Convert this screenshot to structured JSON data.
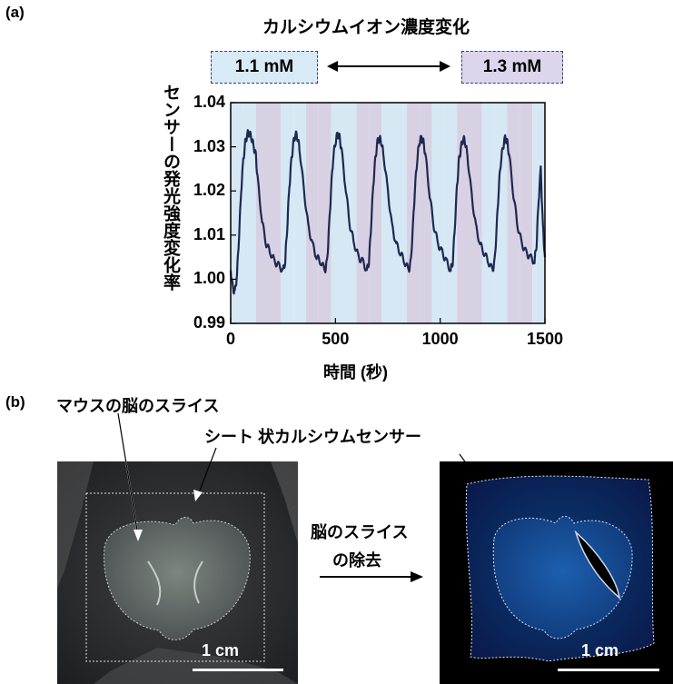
{
  "panel_a": {
    "label": "(a)",
    "title": "カルシウムイオン濃度変化",
    "low_conc": "1.1 mM",
    "high_conc": "1.3 mM",
    "arrow": "⟷"
  },
  "chart_data": {
    "type": "line",
    "xlabel": "時間 (秒)",
    "ylabel": "センサーの発光強度変化率",
    "xlim": [
      0,
      1500
    ],
    "ylim": [
      0.99,
      1.04
    ],
    "xticks": [
      "0",
      "500",
      "1000",
      "1500"
    ],
    "yticks": [
      "0.99",
      "1.00",
      "1.01",
      "1.02",
      "1.03",
      "1.04"
    ],
    "series": [
      {
        "color": "#1f2850",
        "x": [
          0,
          10,
          20,
          30,
          40,
          50,
          60,
          70,
          80,
          90,
          100,
          110,
          120,
          130,
          150,
          170,
          190,
          210,
          230,
          250,
          260,
          270,
          280,
          290,
          300,
          310,
          320,
          330,
          350,
          370,
          390,
          410,
          430,
          450,
          460,
          470,
          480,
          490,
          500,
          510,
          520,
          530,
          550,
          570,
          590,
          610,
          630,
          650,
          660,
          670,
          680,
          690,
          700,
          710,
          720,
          730,
          750,
          770,
          790,
          810,
          830,
          850,
          860,
          870,
          880,
          890,
          900,
          910,
          920,
          930,
          950,
          970,
          990,
          1010,
          1030,
          1050,
          1060,
          1070,
          1080,
          1090,
          1100,
          1110,
          1120,
          1130,
          1150,
          1170,
          1190,
          1210,
          1230,
          1250,
          1260,
          1270,
          1280,
          1290,
          1300,
          1310,
          1320,
          1330,
          1350,
          1370,
          1390,
          1410,
          1430,
          1450,
          1460,
          1470,
          1480,
          1490,
          1500
        ],
        "y": [
          1.002,
          0.998,
          0.997,
          1.001,
          1.01,
          1.02,
          1.027,
          1.031,
          1.033,
          1.033,
          1.032,
          1.03,
          1.028,
          1.022,
          1.013,
          1.008,
          1.006,
          1.004,
          1.003,
          1.002,
          1.004,
          1.012,
          1.021,
          1.027,
          1.031,
          1.033,
          1.032,
          1.029,
          1.02,
          1.012,
          1.008,
          1.005,
          1.004,
          1.002,
          1.004,
          1.012,
          1.021,
          1.028,
          1.031,
          1.033,
          1.032,
          1.029,
          1.02,
          1.012,
          1.008,
          1.005,
          1.004,
          1.002,
          1.004,
          1.012,
          1.021,
          1.027,
          1.031,
          1.032,
          1.031,
          1.028,
          1.02,
          1.012,
          1.008,
          1.006,
          1.004,
          1.002,
          1.004,
          1.012,
          1.021,
          1.027,
          1.031,
          1.032,
          1.031,
          1.028,
          1.019,
          1.012,
          1.008,
          1.006,
          1.004,
          1.002,
          1.004,
          1.012,
          1.021,
          1.027,
          1.03,
          1.032,
          1.031,
          1.028,
          1.019,
          1.012,
          1.008,
          1.006,
          1.004,
          1.002,
          1.004,
          1.012,
          1.021,
          1.027,
          1.03,
          1.032,
          1.031,
          1.028,
          1.019,
          1.012,
          1.008,
          1.006,
          1.005,
          1.004,
          1.008,
          1.018,
          1.025,
          1.012,
          1.005
        ]
      }
    ],
    "bands": {
      "period": 240,
      "low_color": "#d5e8f4",
      "high_color": "#d8d1e4"
    }
  },
  "panel_b": {
    "label": "(b)",
    "caption_slice": "マウスの脳のスライス",
    "caption_sheet": "シート 状カルシウムセンサー",
    "removal_line1": "脳のスライス",
    "removal_line2": "の除去",
    "scale_left": "1 cm",
    "scale_right": "1 cm"
  }
}
